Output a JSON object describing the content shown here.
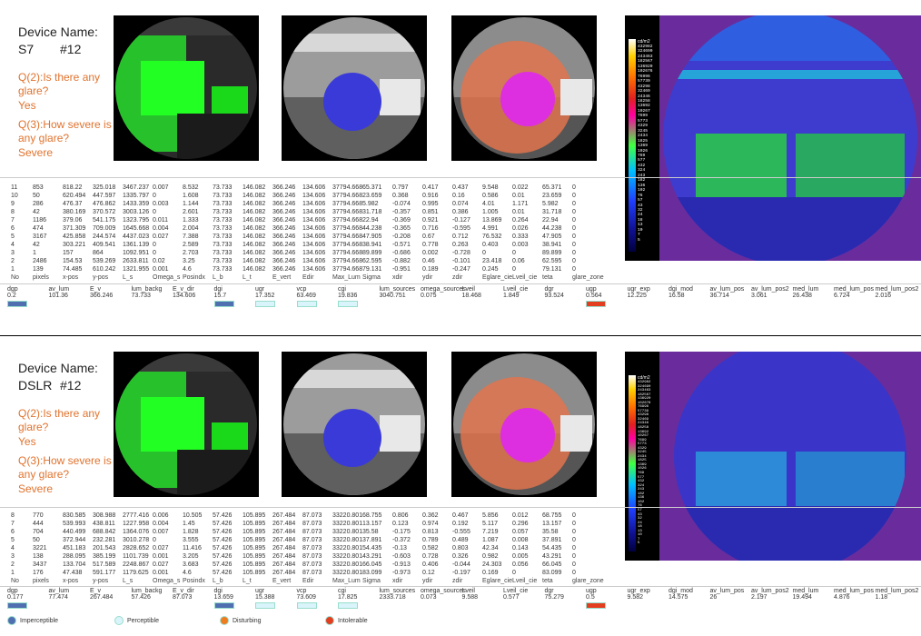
{
  "colors": {
    "imperceptible": "#4f6fb0",
    "perceptible": "#d9f4fb",
    "disturbing": "#f07c20",
    "intolerable": "#e33e1f",
    "question": "#e0732e"
  },
  "blocks": [
    {
      "title": "Device Name:",
      "name": "S7",
      "num": "#12",
      "q2": "Q(2):Is there any glare?",
      "a2": "Yes",
      "q3": "Q(3):How severe is any glare?",
      "a3": "Severe",
      "table_rows": [
        [
          "11",
          "853",
          "818.22",
          "325.018",
          "3467.237",
          "0.007",
          "8.532",
          "73.733",
          "146.082",
          "366.246",
          "134.606",
          "37794.668",
          "65.371",
          "0.797",
          "0.417",
          "0.437",
          "9.548",
          "0.022",
          "65.371",
          "0"
        ],
        [
          "10",
          "50",
          "620.494",
          "447.597",
          "1335.797",
          "0",
          "1.608",
          "73.733",
          "146.082",
          "366.246",
          "134.606",
          "37794.668",
          "23.659",
          "0.368",
          "0.916",
          "0.16",
          "0.586",
          "0.01",
          "23.659",
          "0"
        ],
        [
          "9",
          "286",
          "476.37",
          "476.862",
          "1433.359",
          "0.003",
          "1.144",
          "73.733",
          "146.082",
          "366.246",
          "134.606",
          "37794.668",
          "5.982",
          "-0.074",
          "0.995",
          "0.074",
          "4.01",
          "1.171",
          "5.982",
          "0"
        ],
        [
          "8",
          "42",
          "380.169",
          "370.572",
          "3003.126",
          "0",
          "2.601",
          "73.733",
          "146.082",
          "366.246",
          "134.606",
          "37794.668",
          "31.718",
          "-0.357",
          "0.851",
          "0.386",
          "1.005",
          "0.01",
          "31.718",
          "0"
        ],
        [
          "7",
          "1186",
          "379.06",
          "541.175",
          "1323.795",
          "0.011",
          "1.333",
          "73.733",
          "146.082",
          "366.246",
          "134.606",
          "37794.668",
          "22.94",
          "-0.369",
          "0.921",
          "-0.127",
          "13.869",
          "0.264",
          "22.94",
          "0"
        ],
        [
          "6",
          "474",
          "371.309",
          "709.009",
          "1645.668",
          "0.004",
          "2.004",
          "73.733",
          "146.082",
          "366.246",
          "134.606",
          "37794.668",
          "44.238",
          "-0.365",
          "0.716",
          "-0.595",
          "4.991",
          "0.026",
          "44.238",
          "0"
        ],
        [
          "5",
          "3167",
          "425.858",
          "244.574",
          "4437.023",
          "0.027",
          "7.388",
          "73.733",
          "146.082",
          "366.246",
          "134.606",
          "37794.668",
          "47.905",
          "-0.208",
          "0.67",
          "0.712",
          "76.532",
          "0.333",
          "47.905",
          "0"
        ],
        [
          "4",
          "42",
          "303.221",
          "409.541",
          "1361.139",
          "0",
          "2.589",
          "73.733",
          "146.082",
          "366.246",
          "134.606",
          "37794.668",
          "38.941",
          "-0.571",
          "0.778",
          "0.263",
          "0.403",
          "0.003",
          "38.941",
          "0"
        ],
        [
          "3",
          "1",
          "157",
          "864",
          "1092.951",
          "0",
          "2.703",
          "73.733",
          "146.082",
          "366.246",
          "134.606",
          "37794.668",
          "89.899",
          "-0.686",
          "0.002",
          "-0.728",
          "0",
          "0",
          "89.899",
          "0"
        ],
        [
          "2",
          "2486",
          "154.53",
          "539.269",
          "2633.811",
          "0.02",
          "3.25",
          "73.733",
          "146.082",
          "366.246",
          "134.606",
          "37794.668",
          "62.595",
          "-0.882",
          "0.46",
          "-0.101",
          "23.418",
          "0.06",
          "62.595",
          "0"
        ],
        [
          "1",
          "139",
          "74.485",
          "610.242",
          "1321.955",
          "0.001",
          "4.6",
          "73.733",
          "146.082",
          "366.246",
          "134.606",
          "37794.668",
          "79.131",
          "-0.951",
          "0.189",
          "-0.247",
          "0.245",
          "0",
          "79.131",
          "0"
        ]
      ],
      "summary": [
        {
          "label": "dgp",
          "value": "0.2",
          "swatch": "#4f6fb0"
        },
        {
          "label": "av_lum",
          "value": "101.36"
        },
        {
          "label": "E_v",
          "value": "366.246"
        },
        {
          "label": "lum_backg",
          "value": "73.733"
        },
        {
          "label": "E_v_dir",
          "value": "134.606"
        },
        {
          "label": "dgi",
          "value": "15.7",
          "swatch": "#4f6fb0"
        },
        {
          "label": "ugr",
          "value": "17.352",
          "swatch": "#d9f4fb"
        },
        {
          "label": "vcp",
          "value": "63.469",
          "swatch": "#d9f4fb"
        },
        {
          "label": "cgi",
          "value": "19.836",
          "swatch": "#d9f4fb"
        },
        {
          "label": "lum_sources",
          "value": "3040.751"
        },
        {
          "label": "omega_sources",
          "value": "0.075"
        },
        {
          "label": "Lveil",
          "value": "18.468"
        },
        {
          "label": "Lveil_cie",
          "value": "1.849"
        },
        {
          "label": "dgr",
          "value": "93.524"
        },
        {
          "label": "ugp",
          "value": "0.564",
          "swatch": "#e33e1f"
        },
        {
          "label": "ugr_exp",
          "value": "12.225"
        },
        {
          "label": "dgi_mod",
          "value": "16.58"
        },
        {
          "label": "av_lum_pos",
          "value": "36.714"
        },
        {
          "label": "av_lum_pos2",
          "value": "3.061"
        },
        {
          "label": "med_lum",
          "value": "26.438"
        },
        {
          "label": "med_lum_pos",
          "value": "6.724"
        },
        {
          "label": "med_lum_pos2",
          "value": "2.016"
        }
      ]
    },
    {
      "title": "Device Name:",
      "name": "DSLR",
      "num": "#12",
      "q2": "Q(2):Is there any glare?",
      "a2": "Yes",
      "q3": "Q(3):How severe is any glare?",
      "a3": "Severe",
      "table_rows": [
        [
          "8",
          "770",
          "830.585",
          "308.988",
          "2777.416",
          "0.006",
          "10.505",
          "57.426",
          "105.895",
          "267.484",
          "87.073",
          "33220.801",
          "68.755",
          "0.806",
          "0.362",
          "0.467",
          "5.856",
          "0.012",
          "68.755",
          "0"
        ],
        [
          "7",
          "444",
          "539.993",
          "438.811",
          "1227.958",
          "0.004",
          "1.45",
          "57.426",
          "105.895",
          "267.484",
          "87.073",
          "33220.801",
          "13.157",
          "0.123",
          "0.974",
          "0.192",
          "5.117",
          "0.296",
          "13.157",
          "0"
        ],
        [
          "6",
          "704",
          "440.499",
          "688.842",
          "1364.076",
          "0.007",
          "1.828",
          "57.426",
          "105.895",
          "267.484",
          "87.073",
          "33220.801",
          "35.58",
          "-0.175",
          "0.813",
          "-0.555",
          "7.219",
          "0.057",
          "35.58",
          "0"
        ],
        [
          "5",
          "50",
          "372.944",
          "232.281",
          "3010.278",
          "0",
          "3.555",
          "57.426",
          "105.895",
          "267.484",
          "87.073",
          "33220.801",
          "37.891",
          "-0.372",
          "0.789",
          "0.489",
          "1.087",
          "0.008",
          "37.891",
          "0"
        ],
        [
          "4",
          "3221",
          "451.183",
          "201.543",
          "2828.652",
          "0.027",
          "11.416",
          "57.426",
          "105.895",
          "267.484",
          "87.073",
          "33220.801",
          "54.435",
          "-0.13",
          "0.582",
          "0.803",
          "42.34",
          "0.143",
          "54.435",
          "0"
        ],
        [
          "3",
          "138",
          "288.095",
          "385.199",
          "1101.739",
          "0.001",
          "3.205",
          "57.426",
          "105.895",
          "267.484",
          "87.073",
          "33220.801",
          "43.291",
          "-0.603",
          "0.728",
          "0.326",
          "0.982",
          "0.005",
          "43.291",
          "0"
        ],
        [
          "2",
          "3437",
          "133.704",
          "517.589",
          "2248.867",
          "0.027",
          "3.683",
          "57.426",
          "105.895",
          "267.484",
          "87.073",
          "33220.801",
          "66.045",
          "-0.913",
          "0.406",
          "-0.044",
          "24.303",
          "0.056",
          "66.045",
          "0"
        ],
        [
          "1",
          "176",
          "47.438",
          "591.177",
          "1179.625",
          "0.001",
          "4.6",
          "57.426",
          "105.895",
          "267.484",
          "87.073",
          "33220.801",
          "83.099",
          "-0.973",
          "0.12",
          "-0.197",
          "0.169",
          "0",
          "83.099",
          "0"
        ]
      ],
      "summary": [
        {
          "label": "dgp",
          "value": "0.177",
          "swatch": "#4f6fb0"
        },
        {
          "label": "av_lum",
          "value": "77.474"
        },
        {
          "label": "E_v",
          "value": "267.484"
        },
        {
          "label": "lum_backg",
          "value": "57.426"
        },
        {
          "label": "E_v_dir",
          "value": "87.073"
        },
        {
          "label": "dgi",
          "value": "13.659",
          "swatch": "#4f6fb0"
        },
        {
          "label": "ugr",
          "value": "15.388",
          "swatch": "#d9f4fb"
        },
        {
          "label": "vcp",
          "value": "73.609",
          "swatch": "#d9f4fb"
        },
        {
          "label": "cgi",
          "value": "17.825",
          "swatch": "#d9f4fb"
        },
        {
          "label": "lum_sources",
          "value": "2333.718"
        },
        {
          "label": "omega_sources",
          "value": "0.073"
        },
        {
          "label": "Lveil",
          "value": "9.588"
        },
        {
          "label": "Lveil_cie",
          "value": "0.577"
        },
        {
          "label": "dgr",
          "value": "75.279"
        },
        {
          "label": "ugp",
          "value": "0.5",
          "swatch": "#e33e1f"
        },
        {
          "label": "ugr_exp",
          "value": "9.582"
        },
        {
          "label": "dgi_mod",
          "value": "14.575"
        },
        {
          "label": "av_lum_pos",
          "value": "26"
        },
        {
          "label": "av_lum_pos2",
          "value": "2.197"
        },
        {
          "label": "med_lum",
          "value": "19.494"
        },
        {
          "label": "med_lum_pos",
          "value": "4.876"
        },
        {
          "label": "med_lum_pos2",
          "value": "1.18"
        }
      ]
    }
  ],
  "table_headers": [
    "No",
    "pixels",
    "x-pos",
    "y-pos",
    "L_s",
    "Omega_s",
    "Posindx",
    "L_b",
    "L_t",
    "E_vert",
    "Edir",
    "Max_Lum",
    "Sigma",
    "xdir",
    "ydir",
    "zdir",
    "Eglare_cie",
    "Lveil_cie",
    "teta",
    "glare_zone"
  ],
  "falsecolor_unit": "cd/m2",
  "falsecolor_ticks": [
    "432982",
    "324690",
    "243463",
    "182567",
    "136920",
    "102676",
    "76996",
    "57739",
    "43298",
    "32469",
    "24346",
    "18258",
    "13692",
    "10267",
    "7699",
    "5773",
    "4329",
    "3245",
    "2434",
    "1825",
    "1369",
    "1026",
    "769",
    "577",
    "432",
    "324",
    "243",
    "182",
    "136",
    "102",
    "76",
    "57",
    "43",
    "32",
    "24",
    "18",
    "13",
    "10",
    "7",
    "5"
  ],
  "legend": [
    {
      "label": "Imperceptible",
      "color": "#4f6fb0"
    },
    {
      "label": "Perceptible",
      "color": "#d9f4fb"
    },
    {
      "label": "Disturbing",
      "color": "#f07c20"
    },
    {
      "label": "Intolerable",
      "color": "#e33e1f"
    }
  ]
}
